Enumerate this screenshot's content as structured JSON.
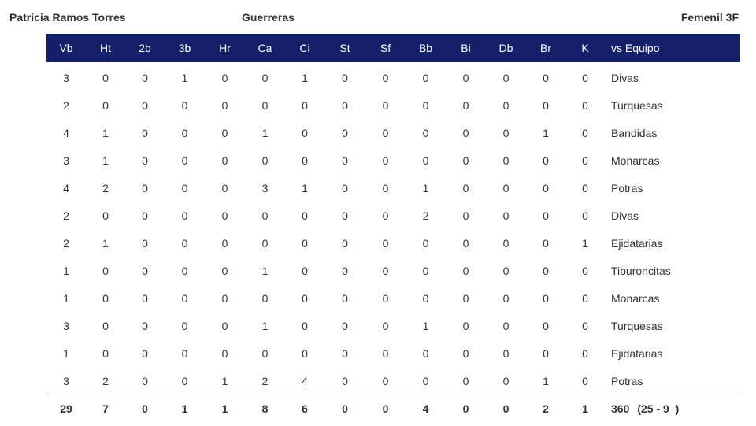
{
  "header": {
    "player": "Patricia Ramos Torres",
    "team": "Guerreras",
    "league": "Femenil 3F"
  },
  "columns": [
    "Vb",
    "Ht",
    "2b",
    "3b",
    "Hr",
    "Ca",
    "Ci",
    "St",
    "Sf",
    "Bb",
    "Bi",
    "Db",
    "Br",
    "K",
    "vs Equipo"
  ],
  "rows": [
    {
      "stats": [
        "3",
        "0",
        "0",
        "1",
        "0",
        "0",
        "1",
        "0",
        "0",
        "0",
        "0",
        "0",
        "0",
        "0"
      ],
      "team": "Divas"
    },
    {
      "stats": [
        "2",
        "0",
        "0",
        "0",
        "0",
        "0",
        "0",
        "0",
        "0",
        "0",
        "0",
        "0",
        "0",
        "0"
      ],
      "team": "Turquesas"
    },
    {
      "stats": [
        "4",
        "1",
        "0",
        "0",
        "0",
        "1",
        "0",
        "0",
        "0",
        "0",
        "0",
        "0",
        "1",
        "0"
      ],
      "team": "Bandidas"
    },
    {
      "stats": [
        "3",
        "1",
        "0",
        "0",
        "0",
        "0",
        "0",
        "0",
        "0",
        "0",
        "0",
        "0",
        "0",
        "0"
      ],
      "team": "Monarcas"
    },
    {
      "stats": [
        "4",
        "2",
        "0",
        "0",
        "0",
        "3",
        "1",
        "0",
        "0",
        "1",
        "0",
        "0",
        "0",
        "0"
      ],
      "team": "Potras"
    },
    {
      "stats": [
        "2",
        "0",
        "0",
        "0",
        "0",
        "0",
        "0",
        "0",
        "0",
        "2",
        "0",
        "0",
        "0",
        "0"
      ],
      "team": "Divas"
    },
    {
      "stats": [
        "2",
        "1",
        "0",
        "0",
        "0",
        "0",
        "0",
        "0",
        "0",
        "0",
        "0",
        "0",
        "0",
        "1"
      ],
      "team": "Ejidatarias"
    },
    {
      "stats": [
        "1",
        "0",
        "0",
        "0",
        "0",
        "1",
        "0",
        "0",
        "0",
        "0",
        "0",
        "0",
        "0",
        "0"
      ],
      "team": "Tiburoncitas"
    },
    {
      "stats": [
        "1",
        "0",
        "0",
        "0",
        "0",
        "0",
        "0",
        "0",
        "0",
        "0",
        "0",
        "0",
        "0",
        "0"
      ],
      "team": "Monarcas"
    },
    {
      "stats": [
        "3",
        "0",
        "0",
        "0",
        "0",
        "1",
        "0",
        "0",
        "0",
        "1",
        "0",
        "0",
        "0",
        "0"
      ],
      "team": "Turquesas"
    },
    {
      "stats": [
        "1",
        "0",
        "0",
        "0",
        "0",
        "0",
        "0",
        "0",
        "0",
        "0",
        "0",
        "0",
        "0",
        "0"
      ],
      "team": "Ejidatarias"
    },
    {
      "stats": [
        "3",
        "2",
        "0",
        "0",
        "1",
        "2",
        "4",
        "0",
        "0",
        "0",
        "0",
        "0",
        "1",
        "0"
      ],
      "team": "Potras"
    }
  ],
  "totals": {
    "stats": [
      "29",
      "7",
      "0",
      "1",
      "1",
      "8",
      "6",
      "0",
      "0",
      "4",
      "0",
      "0",
      "2",
      "1"
    ],
    "average": "360",
    "record": "(25 - 9  )"
  },
  "colors": {
    "header_bg": "#14206a",
    "header_text": "#ffffff",
    "text": "#333333"
  }
}
